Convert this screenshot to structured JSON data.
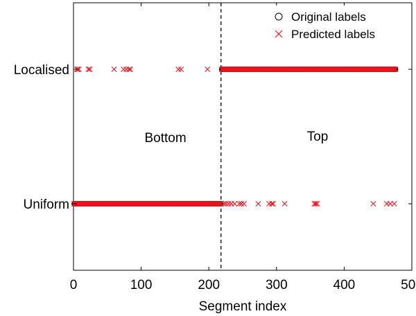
{
  "chart_data": {
    "type": "scatter",
    "title": "",
    "xlabel": "Segment index",
    "ylabel": "",
    "xlim": [
      0,
      500
    ],
    "xticks": [
      0,
      100,
      200,
      300,
      400,
      500
    ],
    "y_categories": [
      "Uniform",
      "Localised"
    ],
    "grid": false,
    "legend_position": "top-right",
    "boundary": {
      "x": 218,
      "style": "dashed"
    },
    "annotations": [
      {
        "text": "Bottom",
        "x": 105,
        "y": 0.49
      },
      {
        "text": "Top",
        "x": 345,
        "y": 0.5
      }
    ],
    "series": [
      {
        "name": "Original labels",
        "marker": "circle",
        "color": "#000000",
        "segments": [
          {
            "category": "Uniform",
            "x_range": [
              1,
              218
            ]
          },
          {
            "category": "Localised",
            "x_range": [
              219,
              476
            ]
          }
        ]
      },
      {
        "name": "Predicted labels",
        "marker": "x",
        "color": "#e8141e",
        "segments": [
          {
            "category": "Uniform",
            "x_range": [
              1,
              218
            ]
          },
          {
            "category": "Localised",
            "x_range": [
              219,
              476
            ]
          }
        ],
        "outliers": {
          "Localised": [
            5,
            6,
            8,
            22,
            24,
            60,
            74,
            78,
            82,
            84,
            155,
            159,
            198
          ],
          "Uniform": [
            222,
            225,
            229,
            233,
            238,
            245,
            248,
            252,
            273,
            289,
            293,
            295,
            312,
            356,
            358,
            360,
            443,
            463,
            468,
            474
          ]
        }
      }
    ]
  }
}
